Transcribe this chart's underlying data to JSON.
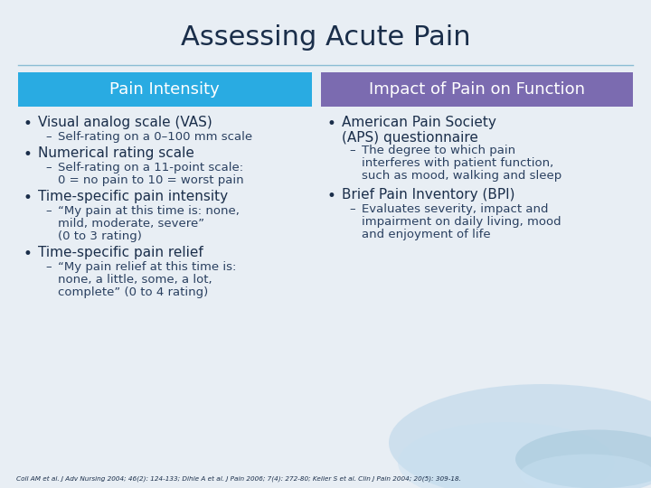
{
  "title": "Assessing Acute Pain",
  "bg_color": "#e8eef4",
  "title_color": "#1a2e4a",
  "left_header": "Pain Intensity",
  "right_header": "Impact of Pain on Function",
  "left_header_bg": "#29abe2",
  "right_header_bg": "#7b6bb0",
  "header_text_color": "#ffffff",
  "left_bullets": [
    {
      "level": 0,
      "text": "Visual analog scale (VAS)"
    },
    {
      "level": 1,
      "text": "Self-rating on a 0–100 mm scale"
    },
    {
      "level": 0,
      "text": "Numerical rating scale"
    },
    {
      "level": 1,
      "text": "Self-rating on a 11-point scale:\n0 = no pain to 10 = worst pain"
    },
    {
      "level": 0,
      "text": "Time-specific pain intensity"
    },
    {
      "level": 1,
      "text": "“My pain at this time is: none,\nmild, moderate, severe”\n(0 to 3 rating)"
    },
    {
      "level": 0,
      "text": "Time-specific pain relief"
    },
    {
      "level": 1,
      "text": "“My pain relief at this time is:\nnone, a little, some, a lot,\ncomplete” (0 to 4 rating)"
    }
  ],
  "right_bullets": [
    {
      "level": 0,
      "text": "American Pain Society\n(APS) questionnaire"
    },
    {
      "level": 1,
      "text": "The degree to which pain\ninterferes with patient function,\nsuch as mood, walking and sleep"
    },
    {
      "level": 0,
      "text": "Brief Pain Inventory (BPI)"
    },
    {
      "level": 1,
      "text": "Evaluates severity, impact and\nimpairment on daily living, mood\nand enjoyment of life"
    }
  ],
  "footnote": "Coll AM et al. J Adv Nursing 2004; 46(2): 124-133; Dihle A et al. J Pain 2006; 7(4): 272-80; Keller S et al. Clin J Pain 2004; 20(5): 309-18.",
  "line_color": "#8bbdd4",
  "bullet_color": "#1a2e4a",
  "sub_bullet_color": "#2a4060",
  "text_color": "#1a2e4a",
  "sub_text_color": "#2a4060",
  "footnote_color": "#1a2e4a",
  "water_color1": "#b8d4e8",
  "water_color2": "#c8dff0",
  "water_color3": "#a0c4d8"
}
